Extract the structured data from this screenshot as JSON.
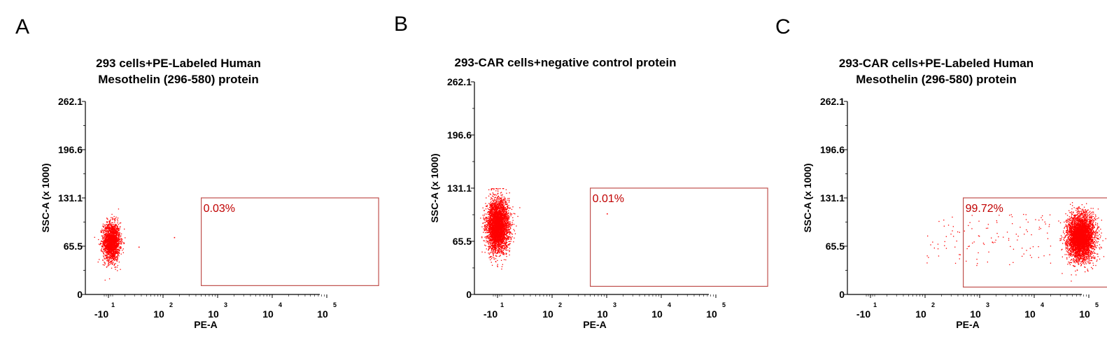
{
  "chart_data": [
    {
      "type": "scatter",
      "panel_label": "A",
      "title_lines": [
        "293 cells+PE-Labeled Human",
        "Mesothelin (296-580) protein"
      ],
      "xlabel": "PE-A",
      "ylabel": "SSC-A (x 1000)",
      "x_ticks": [
        {
          "base": "-10",
          "exp": "1"
        },
        {
          "base": "10",
          "exp": "2"
        },
        {
          "base": "10",
          "exp": "3"
        },
        {
          "base": "10",
          "exp": "4"
        },
        {
          "base": "10",
          "exp": "5"
        }
      ],
      "y_ticks": [
        "0",
        "65.5",
        "131.1",
        "196.6",
        "262.1"
      ],
      "ylim": [
        0,
        262.1
      ],
      "gate_label": "0.03%",
      "gate": {
        "x_decades": [
          1.7,
          4.95
        ],
        "y": [
          12,
          131.1
        ]
      },
      "populations": [
        {
          "cx_decade": 0.05,
          "sx_decade": 0.14,
          "cy": 72,
          "sy": 13,
          "n": 1900
        }
      ],
      "outliers": [
        [
          0.55,
          65
        ],
        [
          1.2,
          78
        ]
      ],
      "color": "#ff0000",
      "gate_color": "#c0504d",
      "label_color": "#c00000"
    },
    {
      "type": "scatter",
      "panel_label": "B",
      "title_lines": [
        "293-CAR cells+negative control protein"
      ],
      "xlabel": "PE-A",
      "ylabel": "SSC-A (x 1000)",
      "x_ticks": [
        {
          "base": "-10",
          "exp": "1"
        },
        {
          "base": "10",
          "exp": "2"
        },
        {
          "base": "10",
          "exp": "3"
        },
        {
          "base": "10",
          "exp": "4"
        },
        {
          "base": "10",
          "exp": "5"
        }
      ],
      "y_ticks": [
        "0",
        "65.5",
        "131.1",
        "196.6",
        "262.1"
      ],
      "ylim": [
        0,
        262.1
      ],
      "gate_label": "0.01%",
      "gate": {
        "x_decades": [
          1.7,
          4.95
        ],
        "y": [
          10,
          131.1
        ]
      },
      "populations": [
        {
          "cx_decade": 0.0,
          "sx_decade": 0.18,
          "cy": 85,
          "sy": 16,
          "n": 3800
        }
      ],
      "outliers": [
        [
          2.0,
          100
        ]
      ],
      "color": "#ff0000",
      "gate_color": "#c0504d",
      "label_color": "#c00000"
    },
    {
      "type": "scatter",
      "panel_label": "C",
      "title_lines": [
        "293-CAR cells+PE-Labeled Human",
        "Mesothelin (296-580) protein"
      ],
      "xlabel": "PE-A",
      "ylabel": "SSC-A (x 1000)",
      "x_ticks": [
        {
          "base": "-10",
          "exp": "1"
        },
        {
          "base": "10",
          "exp": "2"
        },
        {
          "base": "10",
          "exp": "3"
        },
        {
          "base": "10",
          "exp": "4"
        },
        {
          "base": "10",
          "exp": "5"
        }
      ],
      "y_ticks": [
        "0",
        "65.5",
        "131.1",
        "196.6",
        "262.1"
      ],
      "ylim": [
        0,
        262.1
      ],
      "gate_label": "99.72%",
      "gate": {
        "x_decades": [
          1.7,
          4.95
        ],
        "y": [
          10,
          131.1
        ]
      },
      "populations": [
        {
          "cx_decade": 3.85,
          "sx_decade": 0.22,
          "cy": 78,
          "sy": 15,
          "n": 4200
        }
      ],
      "scatter_band": {
        "x_decades": [
          1.0,
          3.3
        ],
        "y": [
          40,
          110
        ],
        "n": 120
      },
      "color": "#ff0000",
      "gate_color": "#c0504d",
      "label_color": "#c00000"
    }
  ]
}
